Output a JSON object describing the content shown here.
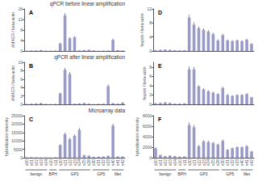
{
  "chart_data": [
    {
      "type": "bar",
      "title": "qPCR before linear amplification",
      "annotation": "A",
      "ylabel": "AMACR / beta-actin",
      "categories": [
        "s00",
        "s01",
        "s02",
        "s03",
        "s04",
        "s10",
        "s11",
        "s20",
        "s21",
        "s22",
        "s23",
        "s24",
        "s25",
        "s26",
        "s30",
        "s31",
        "s32",
        "s33",
        "s40",
        "s41",
        "s42"
      ],
      "values": [
        0.1,
        0.15,
        0.2,
        0.3,
        0.1,
        0.05,
        0.1,
        2.8,
        13.5,
        4.8,
        5.2,
        0.2,
        0.3,
        0.4,
        0.2,
        0.05,
        0.1,
        0.15,
        4.2,
        0.3,
        0.2
      ],
      "errors": [
        0.05,
        0.05,
        0.05,
        0.1,
        0.05,
        0.03,
        0.05,
        0.3,
        0.9,
        0.4,
        0.4,
        0.05,
        0.1,
        0.1,
        0.05,
        0.02,
        0.05,
        0.05,
        0.5,
        0.1,
        0.05
      ],
      "color": "#9999cc",
      "ylim": [
        0,
        16
      ],
      "yticks": [
        0,
        4,
        8,
        12,
        16
      ],
      "grid": false,
      "tick_labels": "y"
    },
    {
      "type": "bar",
      "title": "qPCR after linear amplification",
      "annotation": "B",
      "ylabel": "AMACR / beta-actin",
      "categories": [
        "s00",
        "s01",
        "s02",
        "s03",
        "s04",
        "s10",
        "s11",
        "s20",
        "s21",
        "s22",
        "s23",
        "s24",
        "s25",
        "s26",
        "s30",
        "s31",
        "s32",
        "s33",
        "s40",
        "s41",
        "s42"
      ],
      "values": [
        0.1,
        0.15,
        0.2,
        0.3,
        0.1,
        0.05,
        0.1,
        2.6,
        8.2,
        7.2,
        0.15,
        0.2,
        0.3,
        0.15,
        0.05,
        0.1,
        0.15,
        4.3,
        0.25,
        0.15,
        0.4
      ],
      "errors": [
        0.03,
        0.05,
        0.05,
        0.08,
        0.03,
        0.02,
        0.03,
        0.2,
        0.5,
        0.5,
        0.05,
        0.05,
        0.08,
        0.05,
        0.02,
        0.05,
        0.05,
        0.4,
        0.08,
        0.05,
        0.1
      ],
      "color": "#9999cc",
      "ylim": [
        0,
        10
      ],
      "yticks": [
        0,
        2,
        4,
        6,
        8,
        10
      ],
      "grid": false,
      "tick_labels": "y"
    },
    {
      "type": "bar",
      "title": "Microarray data",
      "annotation": "C",
      "ylabel": "hybridization intensity",
      "categories": [
        "s00",
        "s01",
        "s02",
        "s03",
        "s04",
        "s10",
        "s11",
        "s20",
        "s21",
        "s22",
        "s23",
        "s24",
        "s25",
        "s26",
        "s30",
        "s31",
        "s32",
        "s33",
        "s40",
        "s41",
        "s42"
      ],
      "values": [
        200,
        300,
        250,
        150,
        200,
        150,
        250,
        7500,
        14000,
        11000,
        13000,
        16500,
        1500,
        1200,
        500,
        600,
        700,
        1100,
        19000,
        800,
        700
      ],
      "errors": [
        50,
        80,
        60,
        40,
        50,
        40,
        60,
        500,
        900,
        800,
        900,
        1200,
        200,
        150,
        80,
        100,
        100,
        150,
        1200,
        100,
        90
      ],
      "color": "#9999cc",
      "ylim": [
        0,
        25000
      ],
      "yticks": [
        0,
        5000,
        10000,
        15000,
        20000,
        25000
      ],
      "grid": false,
      "groups": [
        {
          "label": "benign",
          "from": "s00",
          "to": "s04"
        },
        {
          "label": "BPH",
          "from": "s10",
          "to": "s11"
        },
        {
          "label": "GP3",
          "from": "s20",
          "to": "s26"
        },
        {
          "label": "GP5",
          "from": "s30",
          "to": "s33"
        },
        {
          "label": "Met",
          "from": "s40",
          "to": "s42"
        }
      ]
    },
    {
      "type": "bar",
      "annotation": "D",
      "ylabel": "hepsin / beta-actin",
      "categories": [
        "s00",
        "s01",
        "s02",
        "s03",
        "s04",
        "s10",
        "s11",
        "s20",
        "s21",
        "s22",
        "s23",
        "s24",
        "s25",
        "s26",
        "s30",
        "s31",
        "s32",
        "s33",
        "s40",
        "s41",
        "s42"
      ],
      "values": [
        0.2,
        0.3,
        0.4,
        0.3,
        0.2,
        0.15,
        0.2,
        9.5,
        7.5,
        6.5,
        6.0,
        5.5,
        4.8,
        3.0,
        4.5,
        3.0,
        2.8,
        3.0,
        2.8,
        3.2,
        2.0
      ],
      "errors": [
        0.05,
        0.08,
        0.1,
        0.08,
        0.05,
        0.04,
        0.05,
        0.8,
        0.7,
        0.5,
        0.5,
        0.4,
        0.4,
        0.3,
        0.4,
        0.25,
        0.25,
        0.25,
        0.25,
        0.3,
        0.2
      ],
      "color": "#9999cc",
      "ylim": [
        0,
        12
      ],
      "yticks": [
        0,
        4,
        8,
        12
      ],
      "grid": false,
      "tick_labels": "y"
    },
    {
      "type": "bar",
      "annotation": "E",
      "ylabel": "hepsin / beta-actin",
      "categories": [
        "s00",
        "s01",
        "s02",
        "s03",
        "s04",
        "s10",
        "s11",
        "s20",
        "s21",
        "s22",
        "s23",
        "s24",
        "s25",
        "s26",
        "s30",
        "s31",
        "s32",
        "s33",
        "s40",
        "s41",
        "s42"
      ],
      "values": [
        0.2,
        0.3,
        0.4,
        0.3,
        0.15,
        0.15,
        0.2,
        7.5,
        7.5,
        3.8,
        3.2,
        2.8,
        2.5,
        2.2,
        3.5,
        2.0,
        1.8,
        2.0,
        2.0,
        2.2,
        1.5
      ],
      "errors": [
        0.05,
        0.06,
        0.08,
        0.06,
        0.04,
        0.04,
        0.05,
        0.6,
        0.5,
        0.3,
        0.25,
        0.22,
        0.2,
        0.18,
        0.3,
        0.18,
        0.15,
        0.18,
        0.18,
        0.2,
        0.12
      ],
      "color": "#9999cc",
      "ylim": [
        0,
        9
      ],
      "yticks": [
        0,
        2,
        4,
        6,
        8
      ],
      "grid": false,
      "tick_labels": "y"
    },
    {
      "type": "bar",
      "annotation": "F",
      "ylabel": "hybridization intensity",
      "categories": [
        "s00",
        "s01",
        "s02",
        "s03",
        "s04",
        "s10",
        "s11",
        "s20",
        "s21",
        "s22",
        "s23",
        "s24",
        "s25",
        "s26",
        "s30",
        "s31",
        "s32",
        "s33",
        "s40",
        "s41",
        "s42"
      ],
      "values": [
        1800,
        500,
        300,
        400,
        300,
        200,
        250,
        6200,
        5800,
        2200,
        3100,
        3000,
        2800,
        2500,
        3200,
        1500,
        1800,
        2000,
        2000,
        2200,
        1200
      ],
      "errors": [
        200,
        80,
        50,
        70,
        50,
        40,
        50,
        500,
        450,
        200,
        250,
        230,
        220,
        200,
        260,
        130,
        150,
        170,
        170,
        190,
        100
      ],
      "color": "#9999cc",
      "ylim": [
        0,
        8000
      ],
      "yticks": [
        0,
        2000,
        4000,
        6000,
        8000
      ],
      "grid": false,
      "groups": [
        {
          "label": "benign",
          "from": "s00",
          "to": "s04"
        },
        {
          "label": "BPH",
          "from": "s10",
          "to": "s11"
        },
        {
          "label": "GP3",
          "from": "s20",
          "to": "s26"
        },
        {
          "label": "GP5",
          "from": "s30",
          "to": "s33"
        },
        {
          "label": "Met",
          "from": "s40",
          "to": "s42"
        }
      ]
    }
  ]
}
